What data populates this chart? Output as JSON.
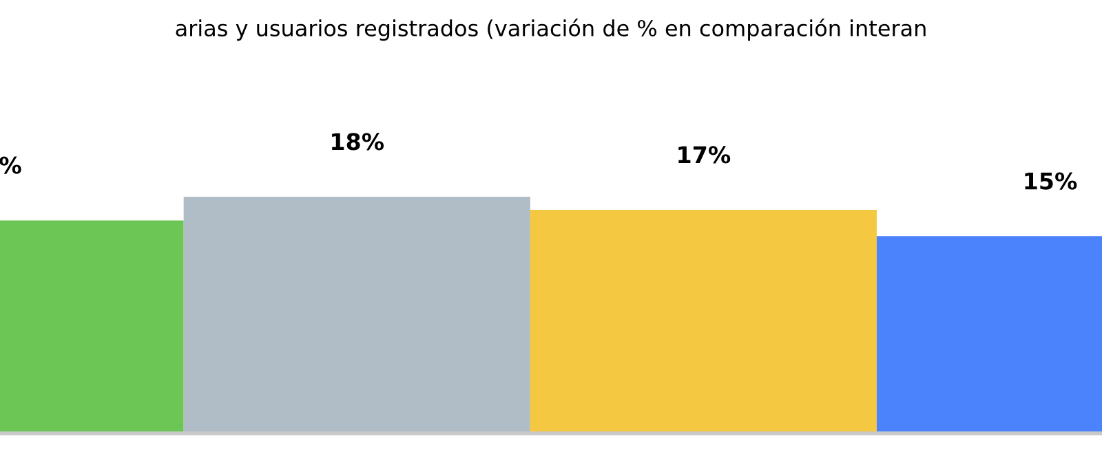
{
  "chart_data": {
    "type": "bar",
    "title": "arias y usuarios registrados (variación de % en comparación interan",
    "categories": [
      null,
      null,
      null,
      null
    ],
    "values": [
      16.2,
      18,
      17,
      15
    ],
    "colors": [
      "#6cc655",
      "#b0bcc6",
      "#f5c842",
      "#4a83fb"
    ],
    "value_labels": [
      "%",
      "18%",
      "17%",
      "15%"
    ]
  }
}
